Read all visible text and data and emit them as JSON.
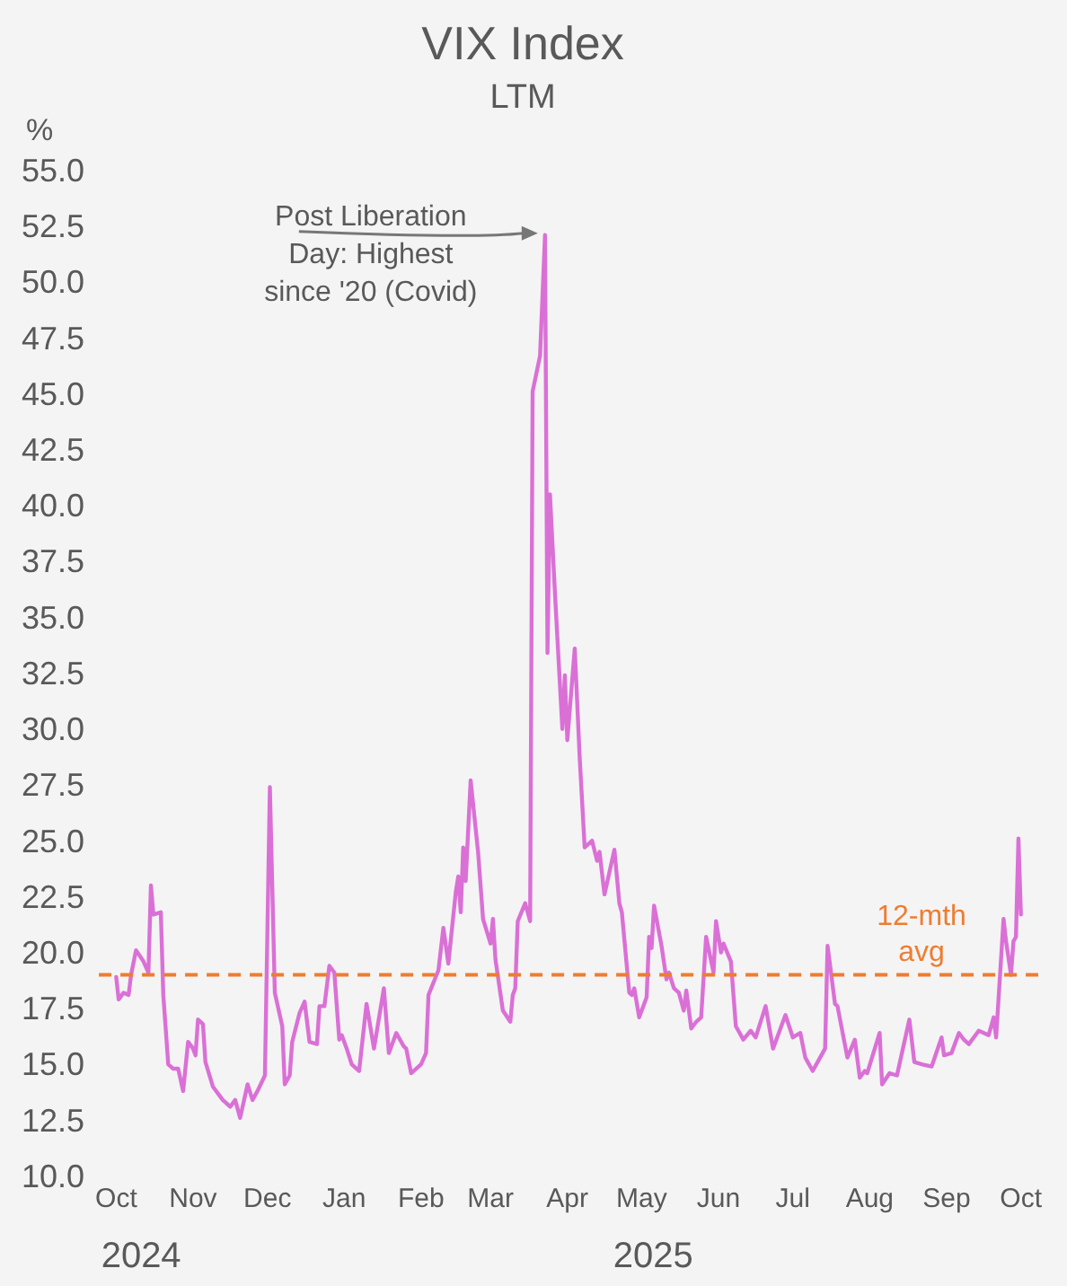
{
  "chart_data": {
    "type": "line",
    "title": "VIX Index",
    "subtitle": "LTM",
    "ylabel": "%",
    "xlim": [
      "2024-09-24",
      "2025-10-08"
    ],
    "xticks": [
      {
        "value": "2024-10-01",
        "label": "Oct"
      },
      {
        "value": "2024-11-01",
        "label": "Nov"
      },
      {
        "value": "2024-12-01",
        "label": "Dec"
      },
      {
        "value": "2025-01-01",
        "label": "Jan"
      },
      {
        "value": "2025-02-01",
        "label": "Feb"
      },
      {
        "value": "2025-03-01",
        "label": "Mar"
      },
      {
        "value": "2025-04-01",
        "label": "Apr"
      },
      {
        "value": "2025-05-01",
        "label": "May"
      },
      {
        "value": "2025-06-01",
        "label": "Jun"
      },
      {
        "value": "2025-07-01",
        "label": "Jul"
      },
      {
        "value": "2025-08-01",
        "label": "Aug"
      },
      {
        "value": "2025-09-01",
        "label": "Sep"
      },
      {
        "value": "2025-10-01",
        "label": "Oct"
      }
    ],
    "ylim": [
      10,
      55
    ],
    "yticks": [
      {
        "value": 10,
        "label": "10.0"
      },
      {
        "value": 12.5,
        "label": "12.5"
      },
      {
        "value": 15,
        "label": "15.0"
      },
      {
        "value": 17.5,
        "label": "17.5"
      },
      {
        "value": 20,
        "label": "20.0"
      },
      {
        "value": 22.5,
        "label": "22.5"
      },
      {
        "value": 25,
        "label": "25.0"
      },
      {
        "value": 27.5,
        "label": "27.5"
      },
      {
        "value": 30,
        "label": "30.0"
      },
      {
        "value": 32.5,
        "label": "32.5"
      },
      {
        "value": 35,
        "label": "35.0"
      },
      {
        "value": 37.5,
        "label": "37.5"
      },
      {
        "value": 40,
        "label": "40.0"
      },
      {
        "value": 42.5,
        "label": "42.5"
      },
      {
        "value": 45,
        "label": "45.0"
      },
      {
        "value": 47.5,
        "label": "47.5"
      },
      {
        "value": 50,
        "label": "50.0"
      },
      {
        "value": 52.5,
        "label": "52.5"
      },
      {
        "value": 55,
        "label": "55.0"
      }
    ],
    "series": [
      {
        "color": "#da70d6",
        "x": [
          "2024-10-01",
          "2024-10-02",
          "2024-10-04",
          "2024-10-06",
          "2024-10-07",
          "2024-10-09",
          "2024-10-12",
          "2024-10-14",
          "2024-10-15",
          "2024-10-16",
          "2024-10-19",
          "2024-10-20",
          "2024-10-22",
          "2024-10-24",
          "2024-10-26",
          "2024-10-28",
          "2024-10-30",
          "2024-11-01",
          "2024-11-02",
          "2024-11-03",
          "2024-11-05",
          "2024-11-06",
          "2024-11-09",
          "2024-11-13",
          "2024-11-16",
          "2024-11-18",
          "2024-11-20",
          "2024-11-23",
          "2024-11-25",
          "2024-11-27",
          "2024-11-30",
          "2024-12-02",
          "2024-12-04",
          "2024-12-07",
          "2024-12-08",
          "2024-12-10",
          "2024-12-11",
          "2024-12-14",
          "2024-12-16",
          "2024-12-18",
          "2024-12-21",
          "2024-12-22",
          "2024-12-24",
          "2024-12-26",
          "2024-12-28",
          "2024-12-30",
          "2024-12-31",
          "2025-01-02",
          "2025-01-04",
          "2025-01-07",
          "2025-01-10",
          "2025-01-13",
          "2025-01-17",
          "2025-01-19",
          "2025-01-22",
          "2025-01-25",
          "2025-01-26",
          "2025-01-28",
          "2025-02-01",
          "2025-02-03",
          "2025-02-04",
          "2025-02-08",
          "2025-02-10",
          "2025-02-12",
          "2025-02-15",
          "2025-02-16",
          "2025-02-17",
          "2025-02-18",
          "2025-02-19",
          "2025-02-21",
          "2025-02-24",
          "2025-02-26",
          "2025-03-01",
          "2025-03-02",
          "2025-03-03",
          "2025-03-06",
          "2025-03-09",
          "2025-03-10",
          "2025-03-11",
          "2025-03-12",
          "2025-03-15",
          "2025-03-17",
          "2025-03-18",
          "2025-03-21",
          "2025-03-23",
          "2025-03-24",
          "2025-03-25",
          "2025-03-27",
          "2025-03-30",
          "2025-03-31",
          "2025-04-01",
          "2025-04-04",
          "2025-04-06",
          "2025-04-08",
          "2025-04-11",
          "2025-04-13",
          "2025-04-14",
          "2025-04-16",
          "2025-04-20",
          "2025-04-22",
          "2025-04-23",
          "2025-04-26",
          "2025-04-27",
          "2025-04-28",
          "2025-04-30",
          "2025-05-03",
          "2025-05-04",
          "2025-05-05",
          "2025-05-06",
          "2025-05-09",
          "2025-05-11",
          "2025-05-12",
          "2025-05-14",
          "2025-05-16",
          "2025-05-18",
          "2025-05-19",
          "2025-05-21",
          "2025-05-23",
          "2025-05-25",
          "2025-05-27",
          "2025-05-30",
          "2025-05-31",
          "2025-06-02",
          "2025-06-03",
          "2025-06-06",
          "2025-06-08",
          "2025-06-11",
          "2025-06-14",
          "2025-06-16",
          "2025-06-20",
          "2025-06-23",
          "2025-06-28",
          "2025-07-01",
          "2025-07-04",
          "2025-07-06",
          "2025-07-09",
          "2025-07-12",
          "2025-07-14",
          "2025-07-15",
          "2025-07-18",
          "2025-07-19",
          "2025-07-23",
          "2025-07-26",
          "2025-07-28",
          "2025-07-30",
          "2025-07-31",
          "2025-08-05",
          "2025-08-06",
          "2025-08-09",
          "2025-08-12",
          "2025-08-17",
          "2025-08-19",
          "2025-08-22",
          "2025-08-26",
          "2025-08-30",
          "2025-08-31",
          "2025-09-03",
          "2025-09-06",
          "2025-09-08",
          "2025-09-10",
          "2025-09-14",
          "2025-09-18",
          "2025-09-20",
          "2025-09-21",
          "2025-09-24",
          "2025-09-25",
          "2025-09-27",
          "2025-09-28",
          "2025-09-29",
          "2025-09-30",
          "2025-10-01"
        ],
        "values": [
          19.0,
          18.0,
          18.3,
          18.2,
          19.1,
          20.2,
          19.7,
          19.2,
          23.1,
          21.8,
          21.9,
          18.2,
          15.1,
          14.9,
          14.9,
          13.9,
          16.1,
          15.8,
          15.5,
          17.1,
          16.9,
          15.2,
          14.1,
          13.5,
          13.2,
          13.5,
          12.7,
          14.2,
          13.5,
          13.9,
          14.6,
          27.5,
          18.3,
          16.8,
          14.2,
          14.6,
          16.1,
          17.4,
          17.9,
          16.1,
          16.0,
          17.7,
          17.7,
          19.5,
          19.2,
          16.2,
          16.4,
          15.8,
          15.1,
          14.8,
          17.8,
          15.8,
          18.5,
          15.6,
          16.5,
          15.9,
          15.8,
          14.7,
          15.1,
          15.6,
          18.2,
          19.3,
          21.2,
          19.6,
          22.8,
          23.5,
          21.9,
          24.8,
          23.3,
          27.8,
          24.6,
          21.6,
          20.5,
          21.6,
          19.8,
          17.5,
          17.0,
          18.2,
          18.5,
          21.5,
          22.3,
          21.5,
          45.2,
          46.8,
          52.2,
          33.5,
          40.6,
          36.2,
          30.1,
          32.5,
          29.6,
          33.7,
          28.8,
          24.8,
          25.1,
          24.2,
          24.6,
          22.7,
          24.7,
          22.3,
          21.9,
          18.3,
          18.2,
          18.5,
          17.2,
          18.1,
          20.8,
          20.3,
          22.2,
          20.4,
          18.9,
          19.2,
          18.5,
          18.3,
          17.5,
          18.4,
          16.7,
          17.0,
          17.2,
          20.8,
          19.2,
          21.5,
          20.1,
          20.5,
          19.7,
          16.8,
          16.2,
          16.6,
          16.3,
          17.7,
          15.8,
          17.3,
          16.3,
          16.5,
          15.4,
          14.8,
          15.4,
          15.8,
          20.4,
          17.8,
          17.7,
          15.4,
          16.2,
          14.5,
          14.8,
          14.7,
          16.5,
          14.2,
          14.7,
          14.6,
          17.1,
          15.2,
          15.1,
          15.0,
          16.3,
          15.5,
          15.6,
          16.5,
          16.2,
          16.0,
          16.6,
          16.4,
          17.2,
          16.3,
          21.6,
          20.6,
          19.1,
          20.6,
          20.8,
          25.2,
          21.8
        ]
      }
    ],
    "ref_lines": [
      {
        "axis": "y",
        "value": 19.1,
        "label": "12-mth avg",
        "color": "#ed7d31",
        "line_style": "dashed"
      }
    ],
    "annotations": [
      {
        "text": "Post Liberation Day: Highest since '20 (Covid)",
        "x": "2025-03-23",
        "y": 52.2
      },
      "2024",
      "2025"
    ]
  }
}
